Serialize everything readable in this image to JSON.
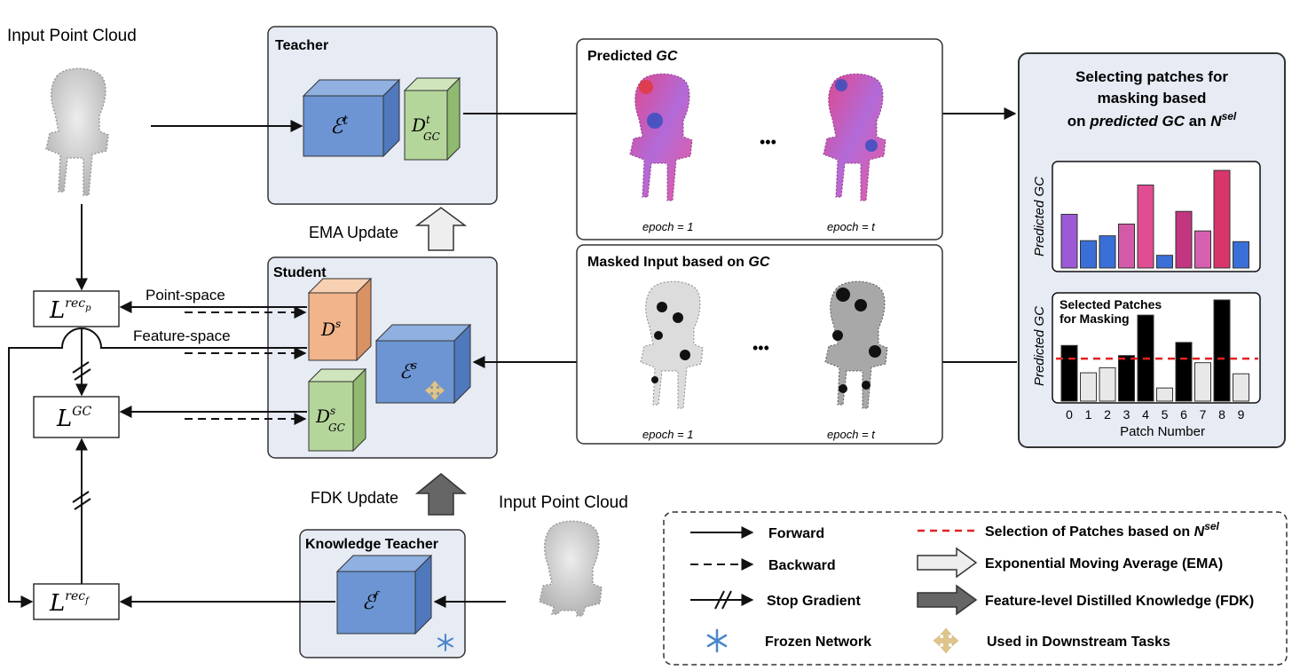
{
  "input_point_cloud_top": "Input Point Cloud",
  "input_point_cloud_bottom": "Input Point Cloud",
  "teacher": {
    "title": "Teacher",
    "encoder": "ℰ",
    "encoder_sup": "t",
    "decoder": "D",
    "decoder_sup": "t",
    "decoder_sub": "GC"
  },
  "student": {
    "title": "Student",
    "decoder_ds": "D",
    "decoder_ds_sup": "s",
    "encoder": "ℰ",
    "encoder_sup": "s",
    "decoder_gc": "D",
    "decoder_gc_sup": "s",
    "decoder_gc_sub": "GC"
  },
  "knowledge_teacher": {
    "title": "Knowledge  Teacher",
    "encoder": "ℰ",
    "encoder_sup": "f"
  },
  "ema_update": "EMA Update",
  "fdk_update": "FDK Update",
  "point_space": "Point-space",
  "feature_space": "Feature-space",
  "losses": {
    "rec_p": {
      "main": "L",
      "sup": "rec",
      "sub": "p"
    },
    "gc": {
      "main": "L",
      "sup": "GC"
    },
    "rec_f": {
      "main": "L",
      "sup": "rec",
      "sub": "f"
    }
  },
  "predicted_panel": {
    "title_a": "Predicted",
    "title_b": "GC",
    "epoch1": "epoch = 1",
    "epocht": "epoch = t",
    "dots": "•••"
  },
  "masked_panel": {
    "title_a": "Masked  Input based on",
    "title_b": "GC",
    "epoch1": "epoch = 1",
    "epocht": "epoch = t",
    "dots": "•••"
  },
  "selecting_panel": {
    "title_line1": "Selecting patches for",
    "title_line2": "masking based",
    "title_line3_a": "on",
    "title_line3_b": "predicted  GC",
    "title_line3_c": "an",
    "title_line3_d": "N",
    "title_line3_sup": "sel",
    "top_ylabel": "Predicted GC",
    "bottom_ylabel": "Predicted GC",
    "bottom_title_1": "Selected Patches",
    "bottom_title_2": "for Masking",
    "xlabel": "Patch Number"
  },
  "chart_data": [
    {
      "type": "bar",
      "categories": [
        "0",
        "1",
        "2",
        "3",
        "4",
        "5",
        "6",
        "7",
        "8",
        "9"
      ],
      "values": [
        0.55,
        0.28,
        0.33,
        0.45,
        0.85,
        0.13,
        0.58,
        0.38,
        1.0,
        0.27
      ],
      "colors": [
        "#9b59d6",
        "#3a6fd8",
        "#3a6fd8",
        "#d35aa6",
        "#e24c93",
        "#3a6fd8",
        "#c2357f",
        "#d65fb0",
        "#d8356b",
        "#3a6fd8"
      ],
      "ylabel": "Predicted GC",
      "ylim": [
        0,
        1
      ]
    },
    {
      "type": "bar",
      "title": "Selected Patches for Masking",
      "categories": [
        "0",
        "1",
        "2",
        "3",
        "4",
        "5",
        "6",
        "7",
        "8",
        "9"
      ],
      "values": [
        0.55,
        0.28,
        0.33,
        0.45,
        0.85,
        0.13,
        0.58,
        0.38,
        1.0,
        0.27
      ],
      "selected": [
        true,
        false,
        false,
        true,
        true,
        false,
        true,
        false,
        true,
        false
      ],
      "threshold": 0.42,
      "xlabel": "Patch Number",
      "ylabel": "Predicted GC",
      "ylim": [
        0,
        1
      ]
    }
  ],
  "legend": {
    "forward": "Forward",
    "backward": "Backward",
    "stop_gradient": "Stop Gradient",
    "frozen": "Frozen Network",
    "selection_a": "Selection of Patches based on",
    "selection_b": "N",
    "selection_sup": "sel",
    "ema": "Exponential Moving Average (EMA)",
    "fdk": "Feature-level Distilled Knowledge (FDK)",
    "downstream": "Used in Downstream Tasks"
  },
  "colors": {
    "encoder": "#6d95d3",
    "decoder_gc": "#b5d69b",
    "decoder_s": "#f2b48a",
    "panel_bg": "#e6ebf4",
    "threshold": "#e62020"
  }
}
